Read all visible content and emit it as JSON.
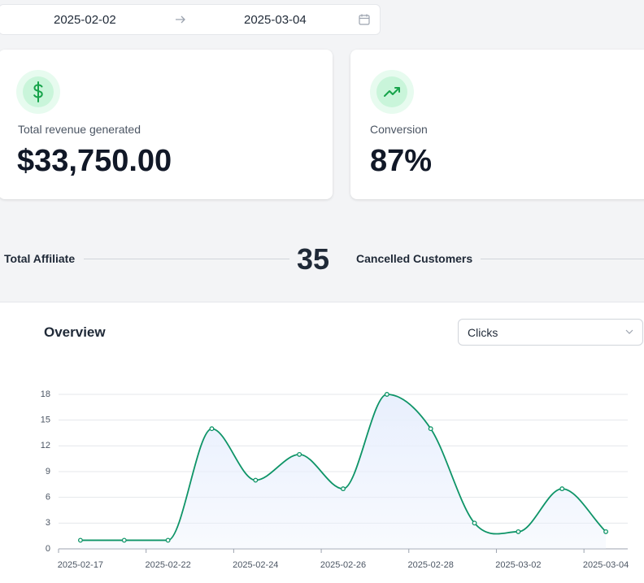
{
  "date_range": {
    "start": "2025-02-02",
    "end": "2025-03-04"
  },
  "cards": [
    {
      "label": "Total revenue generated",
      "value": "$33,750.00"
    },
    {
      "label": "Conversion",
      "value": "87%"
    }
  ],
  "stats": [
    {
      "label": "Total Affiliate",
      "value": 35
    },
    {
      "label": "Cancelled Customers"
    }
  ],
  "overview": {
    "selected": "Clicks"
  },
  "chart_data": {
    "type": "line",
    "title": "Overview",
    "categories": [
      "2025-02-17",
      null,
      "2025-02-22",
      null,
      "2025-02-24",
      null,
      "2025-02-26",
      null,
      "2025-02-28",
      null,
      "2025-03-02",
      null,
      "2025-03-04"
    ],
    "series": [
      {
        "name": "Clicks",
        "color": "#0e9467",
        "fill": "#e8effd",
        "values": [
          1,
          1,
          1,
          14,
          8,
          11,
          7,
          18,
          14,
          3,
          2,
          7,
          2
        ]
      }
    ],
    "ylim": [
      0,
      18
    ],
    "yticks": [
      0,
      3,
      6,
      9,
      12,
      15,
      18
    ],
    "grid": true,
    "smooth": true
  }
}
